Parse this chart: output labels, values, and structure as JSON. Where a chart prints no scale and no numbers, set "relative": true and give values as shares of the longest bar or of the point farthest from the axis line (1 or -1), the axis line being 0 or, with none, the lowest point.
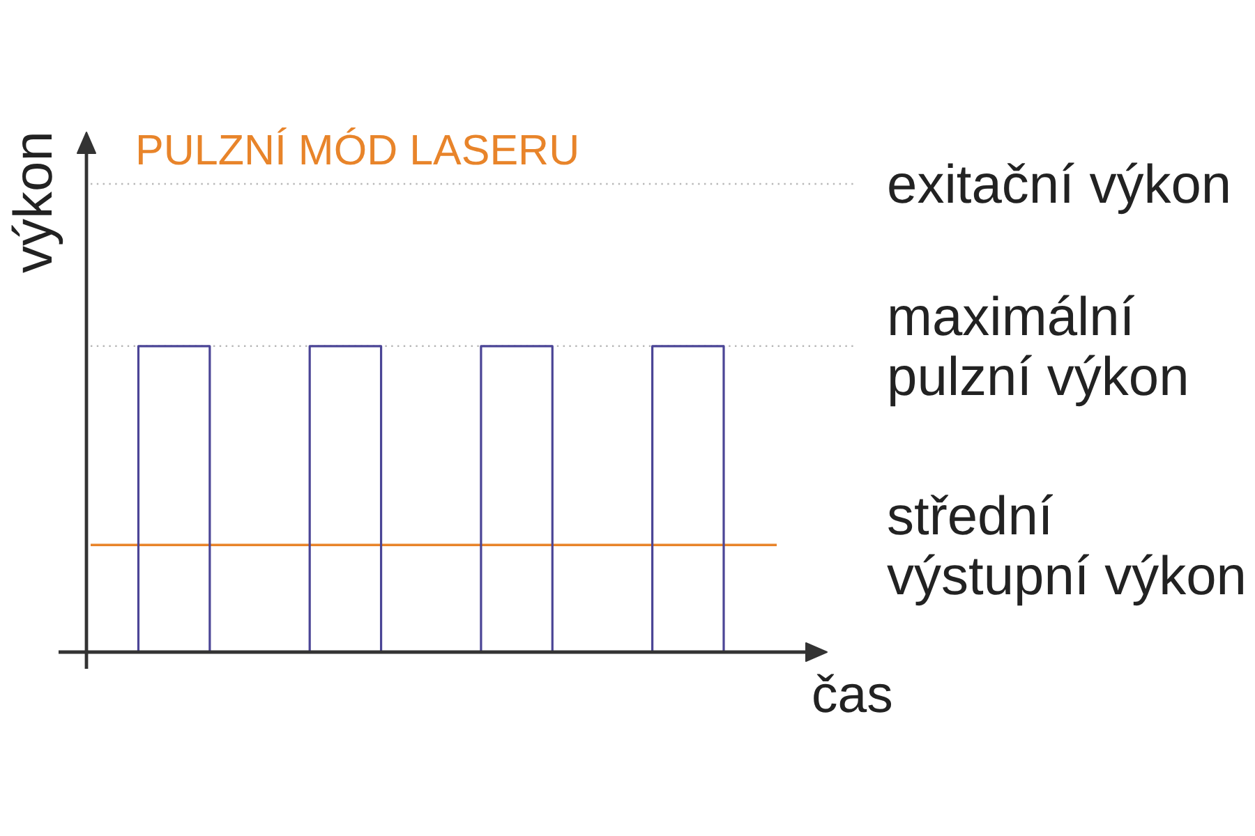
{
  "chart_data": {
    "type": "step",
    "title": "PULZNÍ MÓD LASERU",
    "xlabel": "čas",
    "ylabel": "výkon",
    "categories": [
      null,
      null,
      null,
      null,
      null,
      null,
      null,
      null,
      null,
      null,
      null,
      null,
      null,
      null,
      null,
      null,
      null,
      null,
      null,
      null,
      null,
      null,
      null,
      null,
      null,
      null,
      null,
      null,
      null,
      null,
      null,
      null,
      null,
      null,
      null,
      null,
      null,
      null,
      null,
      null,
      null,
      null,
      null
    ],
    "values": [
      0,
      1,
      1,
      1,
      1,
      1,
      0,
      0,
      0,
      0,
      0,
      0,
      0,
      1,
      1,
      1,
      1,
      1,
      0,
      0,
      0,
      0,
      0,
      0,
      0,
      1,
      1,
      1,
      1,
      1,
      0,
      0,
      0,
      0,
      0,
      0,
      0,
      1,
      1,
      1,
      1,
      1,
      0
    ],
    "color": "#4b4596",
    "relative": true,
    "ref_lines": [
      {
        "axis": "y",
        "value": 1.53,
        "label": "exitační výkon",
        "color": "#b8b8b8",
        "line_style": "dotted"
      },
      {
        "axis": "y",
        "value": 1,
        "label": "maximální pulzní výkon",
        "color": "#b8b8b8",
        "line_style": "dotted"
      },
      {
        "axis": "y",
        "value": 0.35,
        "label": "střední výstupní výkon",
        "color": "#e8842a",
        "line_style": "solid"
      }
    ]
  }
}
